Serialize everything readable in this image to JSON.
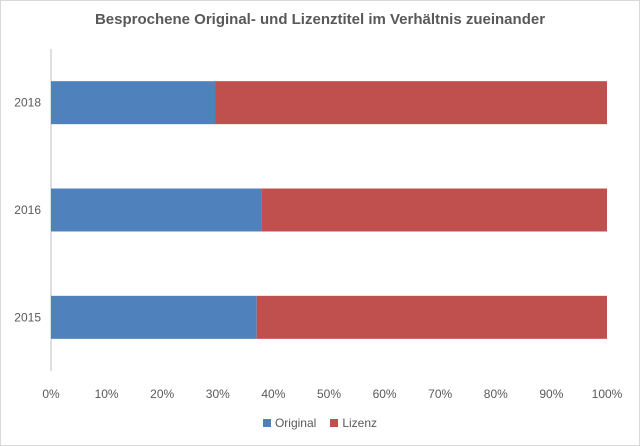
{
  "chart_data": {
    "type": "bar",
    "orientation": "horizontal",
    "stacked": "percent",
    "title": "Besprochene Original- und Lizenztitel im Verhältnis zueinander",
    "categories": [
      "2018",
      "2016",
      "2015"
    ],
    "series": [
      {
        "name": "Original",
        "color": "#4f81bd",
        "values": [
          29.5,
          37.8,
          37.0
        ]
      },
      {
        "name": "Lizenz",
        "color": "#c0504d",
        "values": [
          70.5,
          62.2,
          63.0
        ]
      }
    ],
    "xlim": [
      0,
      100
    ],
    "xticks": [
      "0%",
      "10%",
      "20%",
      "30%",
      "40%",
      "50%",
      "60%",
      "70%",
      "80%",
      "90%",
      "100%"
    ],
    "grid": false,
    "legend": "bottom"
  }
}
